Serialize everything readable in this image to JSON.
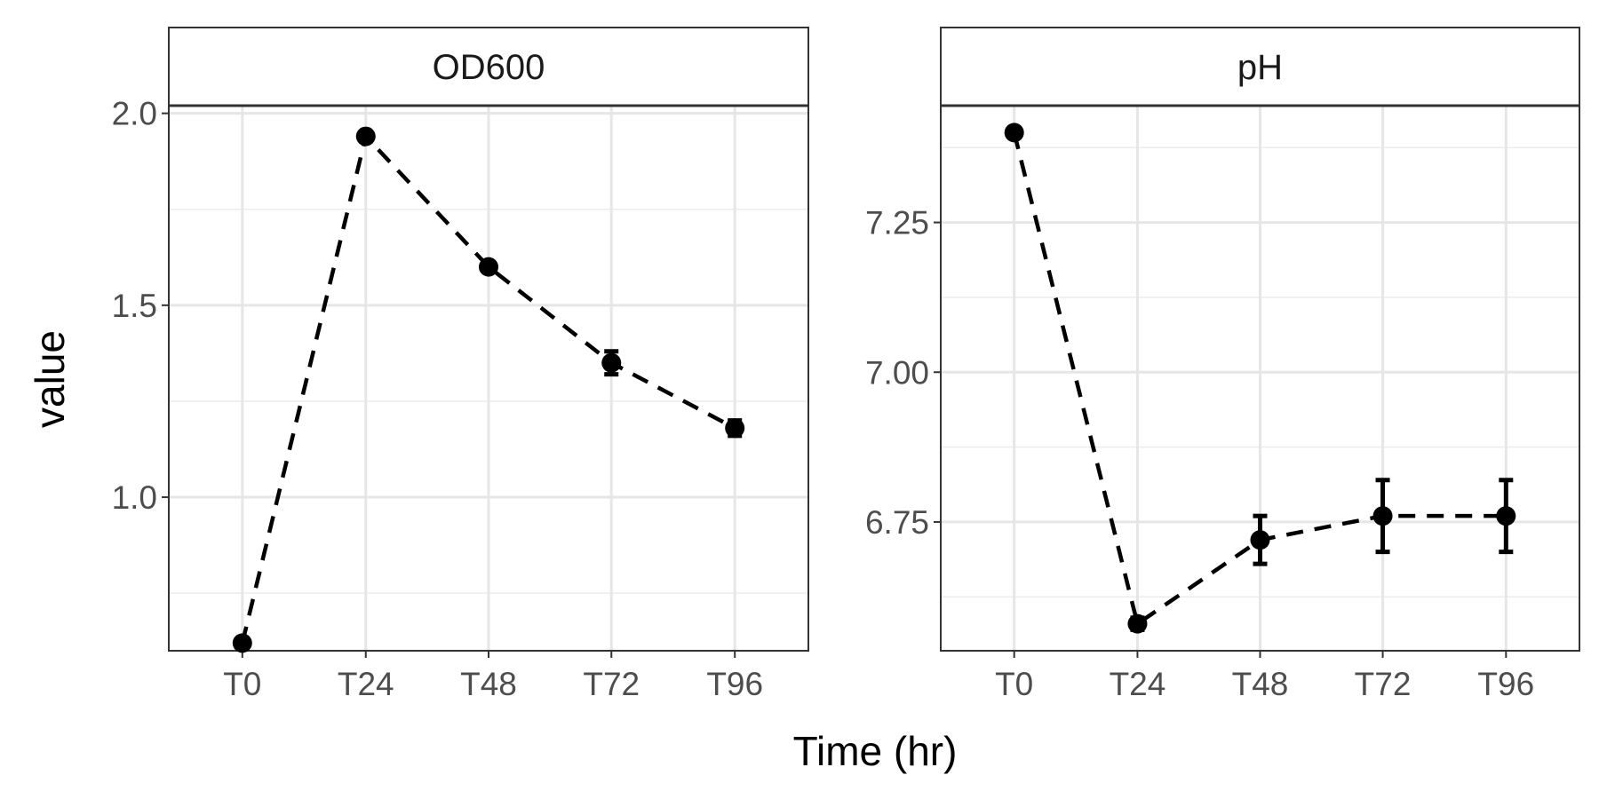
{
  "chart_data": {
    "type": "line",
    "xlabel": "Time (hr)",
    "ylabel": "value",
    "categories": [
      "T0",
      "T24",
      "T48",
      "T72",
      "T96"
    ],
    "grid": true,
    "line_style": "dashed",
    "panels": [
      {
        "title": "OD600",
        "ylim": [
          0.6,
          2.02
        ],
        "yticks": [
          "1.0",
          "1.5",
          "2.0"
        ],
        "ytick_values": [
          1.0,
          1.5,
          2.0
        ],
        "series": [
          {
            "values": [
              0.62,
              1.94,
              1.6,
              1.35,
              1.18
            ],
            "errors": [
              0.005,
              0.01,
              0.01,
              0.03,
              0.02
            ]
          }
        ]
      },
      {
        "title": "pH",
        "ylim": [
          6.535,
          7.445
        ],
        "yticks": [
          "6.75",
          "7.00",
          "7.25"
        ],
        "ytick_values": [
          6.75,
          7.0,
          7.25
        ],
        "series": [
          {
            "values": [
              7.4,
              6.58,
              6.72,
              6.76,
              6.76
            ],
            "errors": [
              0.003,
              0.01,
              0.04,
              0.06,
              0.06
            ]
          }
        ]
      }
    ]
  }
}
